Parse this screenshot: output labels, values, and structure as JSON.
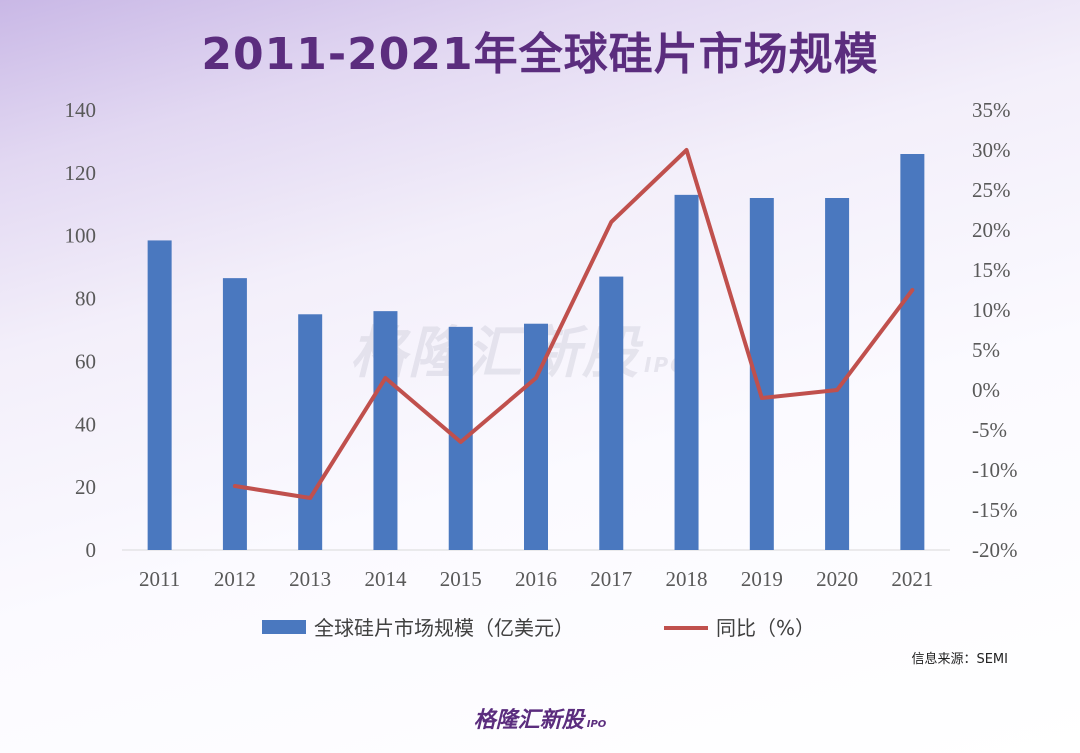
{
  "title": "2011-2021年全球硅片市场规模",
  "source": "信息来源：SEMI",
  "brand": {
    "name": "格隆汇新股",
    "sub": "IPO"
  },
  "colors": {
    "bar": "#4a78bf",
    "line": "#c0504d",
    "title": "#5b2d7e"
  },
  "chart_data": {
    "type": "bar",
    "categories": [
      "2011",
      "2012",
      "2013",
      "2014",
      "2015",
      "2016",
      "2017",
      "2018",
      "2019",
      "2020",
      "2021"
    ],
    "series": [
      {
        "name": "全球硅片市场规模（亿美元）",
        "type": "bar",
        "axis": "left",
        "values": [
          98.5,
          86.5,
          75,
          76,
          71,
          72,
          87,
          113,
          112,
          112,
          126
        ]
      },
      {
        "name": "同比（%）",
        "type": "line",
        "axis": "right",
        "values": [
          null,
          -12,
          -13.5,
          1.5,
          -6.5,
          1.5,
          21,
          30,
          -1,
          0,
          12.5
        ]
      }
    ],
    "y_left": {
      "min": 0,
      "max": 140,
      "ticks": [
        0,
        20,
        40,
        60,
        80,
        100,
        120,
        140
      ]
    },
    "y_right": {
      "min": -20,
      "max": 35,
      "ticks": [
        -20,
        -15,
        -10,
        -5,
        0,
        5,
        10,
        15,
        20,
        25,
        30,
        35
      ],
      "tick_labels": [
        "-20%",
        "-15%",
        "-10%",
        "-5%",
        "0%",
        "5%",
        "10%",
        "15%",
        "20%",
        "25%",
        "30%",
        "35%"
      ]
    },
    "legend": [
      "全球硅片市场规模（亿美元）",
      "同比（%）"
    ],
    "grid": false,
    "legend_position": "bottom"
  }
}
